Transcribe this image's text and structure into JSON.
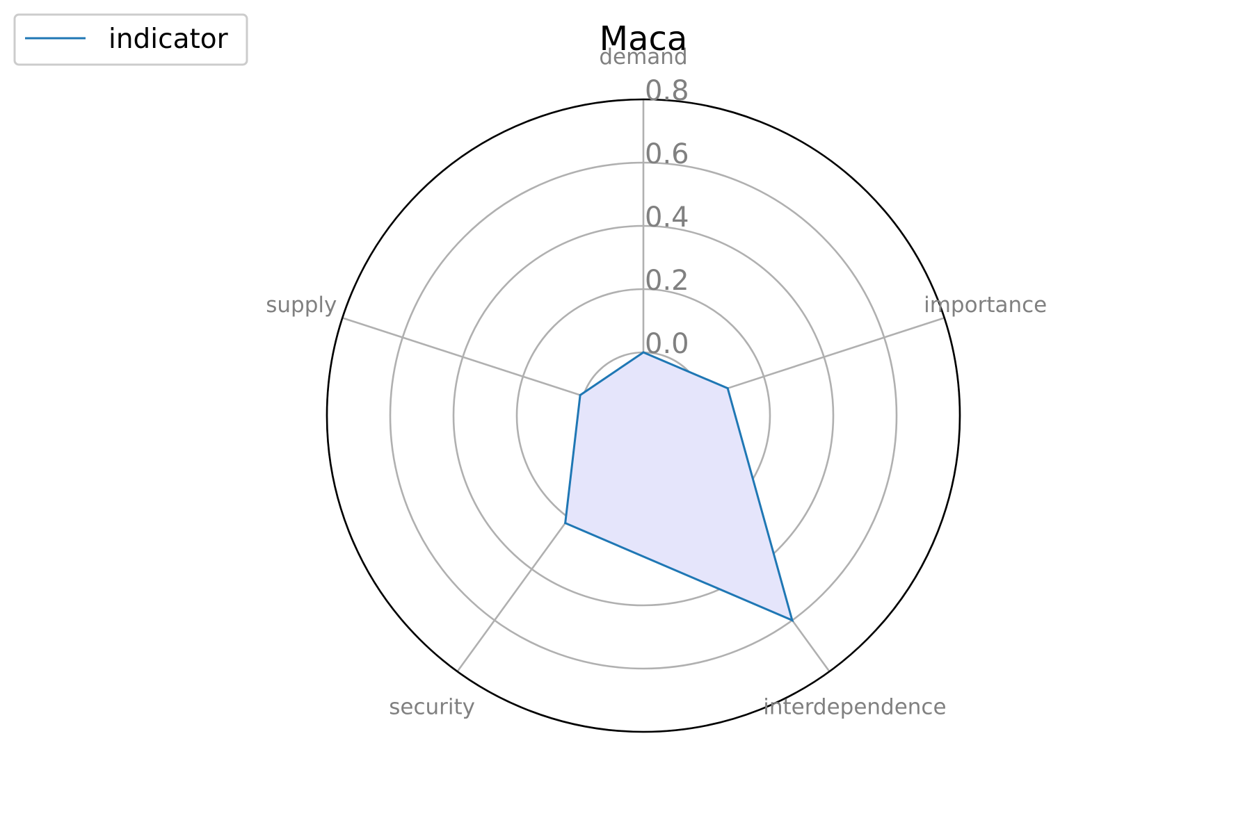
{
  "chart_data": {
    "type": "radar",
    "title": "Maca",
    "categories": [
      "demand",
      "importance",
      "interdependence",
      "security",
      "supply"
    ],
    "series": [
      {
        "name": "indicator",
        "values": [
          0.0,
          0.08,
          0.6,
          0.22,
          0.01
        ]
      }
    ],
    "rlim": [
      -0.2,
      0.8
    ],
    "radial_ticks": [
      0.0,
      0.2,
      0.4,
      0.6,
      0.8
    ],
    "radial_tick_labels": [
      "0.0",
      "0.2",
      "0.4",
      "0.6",
      "0.8"
    ],
    "grid": true,
    "legend_position": "top-left",
    "colors": {
      "line": "#1f77b4",
      "fill": "#e5e5fb",
      "grid": "#b0b0b0",
      "frame": "#000000",
      "labels": "#808080"
    }
  }
}
